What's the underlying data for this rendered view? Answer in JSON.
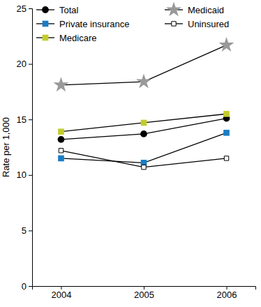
{
  "chart_data": {
    "type": "line",
    "y_label": "Rate per 1,000",
    "categories": [
      "2004",
      "2005",
      "2006"
    ],
    "series": [
      {
        "name": "Total",
        "color": "#000000",
        "marker": "circle",
        "values": [
          13.2,
          13.7,
          15.1
        ]
      },
      {
        "name": "Private insurance",
        "color": "#1a7dc4",
        "marker": "square",
        "values": [
          11.5,
          11.1,
          13.8
        ]
      },
      {
        "name": "Medicare",
        "color": "#c2cc2c",
        "marker": "square",
        "values": [
          13.9,
          14.7,
          15.5
        ]
      },
      {
        "name": "Medicaid",
        "color": "#999999",
        "marker": "star",
        "values": [
          18.1,
          18.4,
          21.7
        ]
      },
      {
        "name": "Uninsured",
        "color": "#ffffff",
        "marker": "square",
        "values": [
          12.2,
          10.7,
          11.5
        ]
      }
    ],
    "ylim": [
      0,
      25
    ],
    "yticks": [
      0,
      5,
      10,
      15,
      20,
      25
    ],
    "grid": false,
    "legend": "top"
  }
}
